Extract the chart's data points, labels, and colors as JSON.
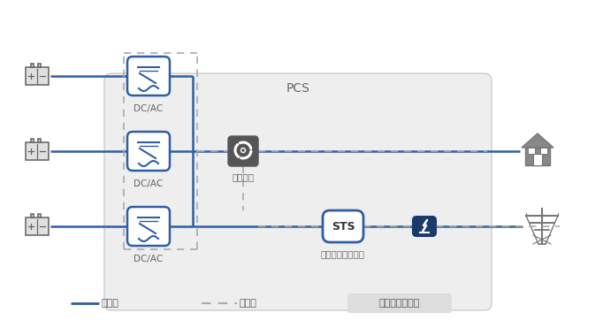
{
  "bg_color": "#f0f0f0",
  "white": "#ffffff",
  "blue_dark": "#1a3a6b",
  "blue_mid": "#2e5fa3",
  "blue_light": "#4a7cc7",
  "gray_dark": "#555555",
  "gray_mid": "#888888",
  "gray_light": "#cccccc",
  "line_blue": "#2e5fa3",
  "line_gray": "#aaaaaa",
  "pcs_label": "PCS",
  "monitor_label": "监控单元",
  "sts_label": "STS",
  "sts_sublabel": "静态开关（选配）",
  "legend_power": "动力线",
  "legend_comm": "通讯线",
  "legend_solution": "交鑰匙解决方案",
  "figsize": [
    6.82,
    3.71
  ],
  "dpi": 100
}
